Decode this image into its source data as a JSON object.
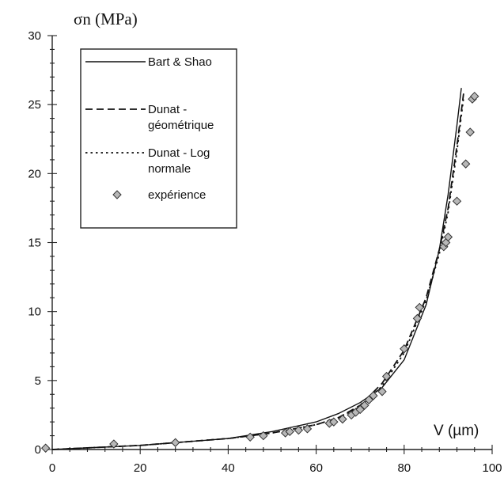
{
  "chart_data": {
    "type": "line",
    "title": "",
    "ylabel": "σn (MPa)",
    "xlabel": "V (µm)",
    "xlim": [
      0,
      100
    ],
    "ylim": [
      0,
      30
    ],
    "xticks": [
      0,
      20,
      40,
      60,
      80,
      100
    ],
    "yticks": [
      0,
      5,
      10,
      15,
      20,
      25,
      30
    ],
    "grid": false,
    "legend_position": "top-left",
    "series": [
      {
        "name": "Bart & Shao",
        "style": "solid",
        "color": "#111111",
        "x": [
          0,
          20,
          40,
          50,
          60,
          65,
          70,
          75,
          80,
          85,
          88,
          90,
          92,
          93
        ],
        "y": [
          0,
          0.3,
          0.8,
          1.3,
          2.0,
          2.6,
          3.4,
          4.5,
          6.5,
          10.5,
          14.5,
          18.5,
          23.5,
          26.2
        ]
      },
      {
        "name": "Dunat - géométrique",
        "line1": "Dunat -",
        "line2": "géométrique",
        "style": "dashed",
        "color": "#111111",
        "x": [
          0,
          20,
          40,
          50,
          60,
          65,
          70,
          75,
          80,
          85,
          88,
          90,
          92,
          93.5
        ],
        "y": [
          0,
          0.3,
          0.8,
          1.2,
          1.8,
          2.3,
          3.2,
          4.8,
          7.2,
          11.0,
          14.5,
          17.5,
          22.0,
          25.8
        ]
      },
      {
        "name": "Dunat - Log normale",
        "line1": "Dunat - Log",
        "line2": "normale",
        "style": "dotted",
        "color": "#111111",
        "x": [
          0,
          20,
          40,
          50,
          60,
          65,
          70,
          75,
          80,
          85,
          88,
          90,
          92,
          93.5
        ],
        "y": [
          0,
          0.3,
          0.8,
          1.2,
          1.8,
          2.3,
          3.1,
          4.6,
          7.0,
          10.8,
          14.2,
          17.2,
          21.6,
          25.5
        ]
      },
      {
        "name": "expérience",
        "style": "markers",
        "marker": "diamond",
        "color": "#888888",
        "x": [
          -1.5,
          14,
          28,
          45,
          48,
          53,
          54,
          56,
          58,
          63,
          64,
          66,
          68,
          69,
          70,
          71,
          72,
          73,
          75,
          76,
          80,
          83,
          83.5,
          89,
          89.5,
          90,
          92,
          94,
          95,
          95.5,
          96
        ],
        "y": [
          0.1,
          0.4,
          0.5,
          0.9,
          1.0,
          1.2,
          1.3,
          1.4,
          1.5,
          1.9,
          2.0,
          2.2,
          2.5,
          2.7,
          2.9,
          3.2,
          3.6,
          3.9,
          4.2,
          5.3,
          7.3,
          9.5,
          10.3,
          14.7,
          15.0,
          15.4,
          18.0,
          20.7,
          23.0,
          25.4,
          25.6
        ]
      }
    ]
  }
}
